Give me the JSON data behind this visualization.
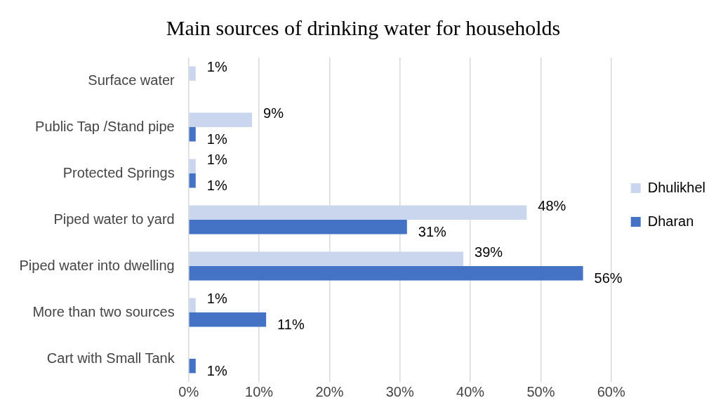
{
  "chart_data": {
    "type": "bar",
    "orientation": "horizontal",
    "title": "Main sources of drinking water for households",
    "categories": [
      "Surface water",
      "Public Tap /Stand pipe",
      "Protected Springs",
      "Piped water to yard",
      "Piped water into dwelling",
      "More than two sources",
      "Cart with Small Tank"
    ],
    "series": [
      {
        "name": "Dhulikhel",
        "color": "#c9d6ee",
        "values": [
          1,
          9,
          1,
          48,
          39,
          1,
          null
        ],
        "value_labels": [
          "1%",
          "9%",
          "1%",
          "48%",
          "39%",
          "1%",
          null
        ]
      },
      {
        "name": "Dharan",
        "color": "#4472c4",
        "values": [
          null,
          1,
          1,
          31,
          56,
          11,
          1
        ],
        "value_labels": [
          null,
          "1%",
          "1%",
          "31%",
          "56%",
          "11%",
          "1%"
        ]
      }
    ],
    "xlim": [
      0,
      60
    ],
    "xticks": [
      {
        "value": 0,
        "label": "0%"
      },
      {
        "value": 10,
        "label": "10%"
      },
      {
        "value": 20,
        "label": "20%"
      },
      {
        "value": 30,
        "label": "30%"
      },
      {
        "value": 40,
        "label": "40%"
      },
      {
        "value": 50,
        "label": "50%"
      },
      {
        "value": 60,
        "label": "60%"
      }
    ],
    "grid": "x",
    "legend": "right"
  }
}
